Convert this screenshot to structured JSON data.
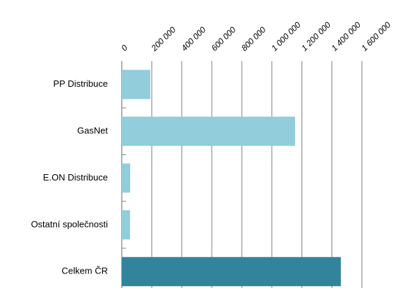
{
  "chart_data": {
    "type": "barh",
    "categories": [
      "PP Distribuce",
      "GasNet",
      "E.ON Distribuce",
      "Ostatní společnosti",
      "Celkem ČR"
    ],
    "values": [
      190000,
      1155000,
      56000,
      55000,
      1460000
    ],
    "colors": [
      "#92cddc",
      "#92cddc",
      "#92cddc",
      "#92cddc",
      "#31849b"
    ],
    "xlim": [
      0,
      1600000
    ],
    "xticks": [
      0,
      {
        "value": 200000,
        "label": "200 000"
      },
      {
        "value": 400000,
        "label": "400 000"
      },
      {
        "value": 600000,
        "label": "600 000"
      },
      {
        "value": 800000,
        "label": "800 000"
      },
      {
        "value": 1000000,
        "label": "1 000 000"
      },
      {
        "value": 1200000,
        "label": "1 200 000"
      },
      {
        "value": 1400000,
        "label": "1 400 000"
      },
      {
        "value": 1600000,
        "label": "1 600 000"
      }
    ],
    "grid": true
  }
}
